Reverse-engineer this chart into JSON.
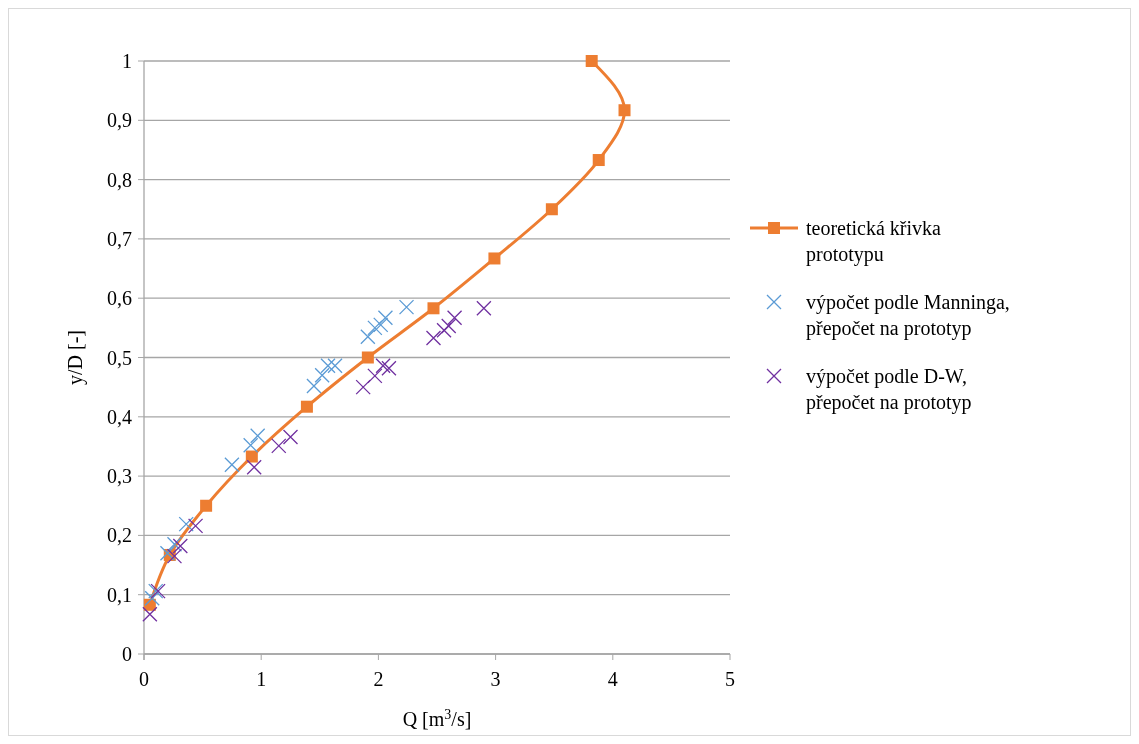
{
  "chart_data": {
    "type": "scatter",
    "xlabel": "Q [m$^{3}$/s]",
    "ylabel": "y/D [-]",
    "xlim": [
      0,
      5
    ],
    "xticks": [
      0,
      1,
      2,
      3,
      4,
      5
    ],
    "ylim": [
      0,
      1
    ],
    "yticks": [
      0,
      {
        "value": 0.1,
        "label": "0,1"
      },
      {
        "value": 0.2,
        "label": "0,2"
      },
      {
        "value": 0.3,
        "label": "0,3"
      },
      {
        "value": 0.4,
        "label": "0,4"
      },
      {
        "value": 0.5,
        "label": "0,5"
      },
      {
        "value": 0.6,
        "label": "0,6"
      },
      {
        "value": 0.7,
        "label": "0,7"
      },
      {
        "value": 0.8,
        "label": "0,8"
      },
      {
        "value": 0.9,
        "label": "0,9"
      },
      1
    ],
    "grid": "y",
    "legend": "right",
    "series": [
      {
        "type": "line",
        "name": "teoretická křivka prototypu",
        "color": "#ed7d31",
        "marker": "square",
        "line_style": "solid",
        "x": [
          3.82,
          4.1,
          3.88,
          3.48,
          2.99,
          2.47,
          1.91,
          1.39,
          0.92,
          0.53,
          0.22,
          0.05
        ],
        "values": [
          1,
          0.917,
          0.833,
          0.75,
          0.667,
          0.583,
          0.5,
          0.417,
          0.333,
          0.25,
          0.167,
          0.083
        ]
      },
      {
        "name": "výpočet podle Manninga, přepočet na prototyp",
        "color": "#5b9bd5",
        "marker": "cross",
        "x": [
          2.24,
          2.06,
          2.02,
          1.97,
          1.91,
          1.63,
          1.57,
          1.52,
          1.45,
          0.97,
          0.91,
          0.75,
          0.36,
          0.26,
          0.2,
          0.1,
          0.07
        ],
        "values": [
          0.585,
          0.567,
          0.555,
          0.55,
          0.535,
          0.486,
          0.486,
          0.47,
          0.452,
          0.368,
          0.352,
          0.319,
          0.219,
          0.185,
          0.17,
          0.106,
          0.094
        ]
      },
      {
        "name": "výpočet podle D-W, přepočet na prototyp",
        "color": "#7030a0",
        "marker": "cross",
        "x": [
          2.9,
          2.65,
          2.6,
          2.56,
          2.47,
          2.09,
          2.04,
          1.97,
          1.87,
          1.25,
          1.15,
          0.94,
          0.44,
          0.31,
          0.26,
          0.12,
          0.05
        ],
        "values": [
          0.583,
          0.567,
          0.553,
          0.546,
          0.533,
          0.482,
          0.486,
          0.469,
          0.45,
          0.366,
          0.351,
          0.315,
          0.216,
          0.182,
          0.165,
          0.106,
          0.067
        ]
      }
    ]
  }
}
